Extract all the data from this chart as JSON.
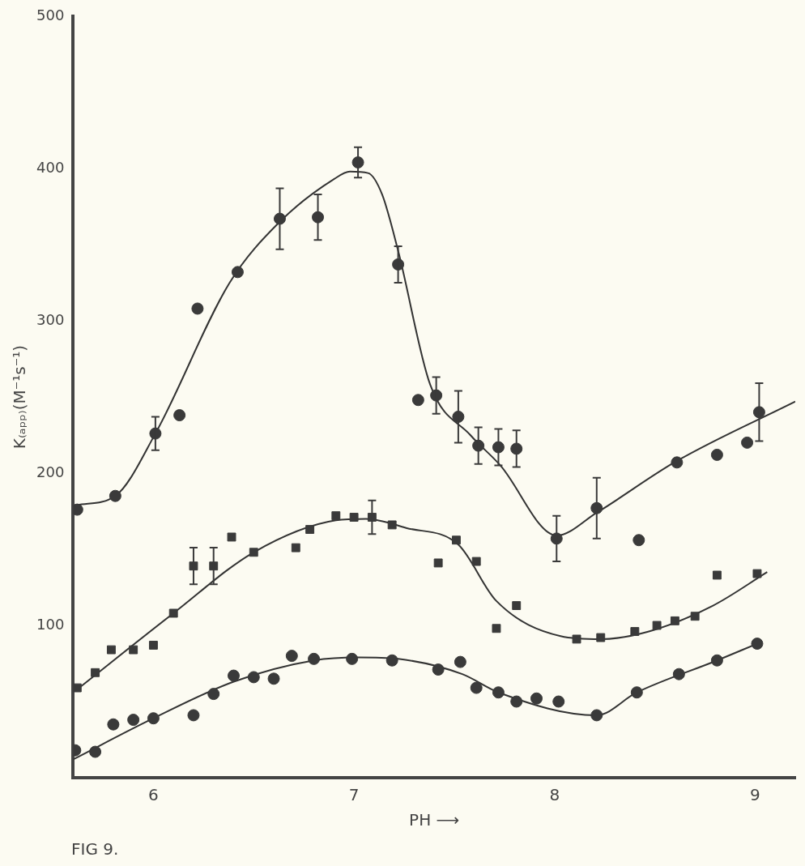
{
  "chart_data": {
    "type": "scatter",
    "xlabel": "PH ⟶",
    "ylabel": "K₍ₐₚₚ₎(M⁻¹s⁻¹)",
    "annotations": [
      "FIG 9."
    ],
    "xlim": [
      5.6,
      9.2
    ],
    "xticks": [
      6,
      7,
      8,
      9
    ],
    "ylim": [
      0,
      500
    ],
    "yticks": [
      100,
      200,
      300,
      400,
      500
    ],
    "grid": false,
    "legend": false,
    "series": [
      {
        "marker": "circle",
        "color": "#3a3a3a",
        "x": [
          5.62,
          5.81,
          6.01,
          6.13,
          6.22,
          6.42,
          6.63,
          6.82,
          7.02,
          7.22,
          7.32,
          7.41,
          7.52,
          7.62,
          7.72,
          7.81,
          8.01,
          8.21,
          8.42,
          8.61,
          8.81,
          8.96,
          9.02
        ],
        "values": [
          176,
          185,
          226,
          238,
          308,
          332,
          367,
          368,
          404,
          337,
          248,
          251,
          237,
          218,
          217,
          216,
          157,
          177,
          156,
          207,
          212,
          220,
          240
        ],
        "errors": [
          null,
          null,
          11,
          null,
          null,
          null,
          20,
          15,
          10,
          12,
          null,
          12,
          17,
          12,
          12,
          12,
          15,
          20,
          null,
          null,
          null,
          null,
          19
        ]
      },
      {
        "type": "line",
        "marker": "none",
        "color": "#333333",
        "x": [
          5.62,
          5.81,
          6.01,
          6.38,
          6.63,
          6.9,
          6.98,
          7.07,
          7.14,
          7.22,
          7.38,
          7.58,
          7.73,
          8.01,
          8.21,
          8.61,
          9.2
        ],
        "values": [
          179,
          185,
          226,
          325,
          365,
          393,
          398,
          397,
          383,
          346,
          258,
          225,
          205,
          159,
          174,
          208,
          247
        ]
      },
      {
        "marker": "square",
        "color": "#3a3a3a",
        "x": [
          5.62,
          5.71,
          5.79,
          5.9,
          6.0,
          6.1,
          6.2,
          6.3,
          6.39,
          6.5,
          6.71,
          6.78,
          6.91,
          7.0,
          7.09,
          7.19,
          7.42,
          7.51,
          7.61,
          7.71,
          7.81,
          8.11,
          8.23,
          8.4,
          8.51,
          8.6,
          8.7,
          8.81,
          9.01
        ],
        "values": [
          59,
          69,
          84,
          84,
          87,
          108,
          139,
          139,
          158,
          148,
          151,
          163,
          172,
          171,
          171,
          166,
          141,
          156,
          142,
          98,
          113,
          91,
          92,
          96,
          100,
          103,
          106,
          133,
          134
        ],
        "errors": [
          null,
          null,
          null,
          null,
          null,
          null,
          12,
          12,
          null,
          null,
          null,
          null,
          null,
          null,
          11,
          null,
          null,
          null,
          null,
          null,
          null,
          null,
          null,
          null,
          null,
          null,
          null,
          null,
          null
        ]
      },
      {
        "type": "line",
        "marker": "none",
        "color": "#333333",
        "x": [
          5.62,
          6.1,
          6.5,
          6.91,
          7.06,
          7.26,
          7.52,
          7.71,
          8.03,
          8.23,
          8.47,
          8.79,
          9.06
        ],
        "values": [
          58,
          108,
          148,
          169,
          170,
          164,
          153,
          116,
          93,
          91,
          96,
          113,
          135
        ]
      },
      {
        "marker": "circle",
        "color": "#3a3a3a",
        "x": [
          5.61,
          5.71,
          5.8,
          5.9,
          6.0,
          6.2,
          6.3,
          6.4,
          6.5,
          6.6,
          6.69,
          6.8,
          6.99,
          7.19,
          7.42,
          7.53,
          7.61,
          7.72,
          7.81,
          7.91,
          8.02,
          8.21,
          8.41,
          8.62,
          8.81,
          9.01
        ],
        "values": [
          18,
          17,
          35,
          38,
          39,
          41,
          55,
          67,
          66,
          65,
          80,
          78,
          78,
          77,
          71,
          76,
          59,
          56,
          50,
          52,
          50,
          41,
          56,
          68,
          77,
          88
        ]
      },
      {
        "type": "line",
        "marker": "none",
        "color": "#333333",
        "x": [
          5.6,
          6.0,
          6.4,
          6.8,
          7.02,
          7.22,
          7.54,
          7.72,
          8.21,
          8.41,
          8.81,
          9.01
        ],
        "values": [
          12,
          39,
          63,
          77,
          79,
          78,
          68,
          56,
          41,
          56,
          77,
          88
        ]
      }
    ]
  }
}
